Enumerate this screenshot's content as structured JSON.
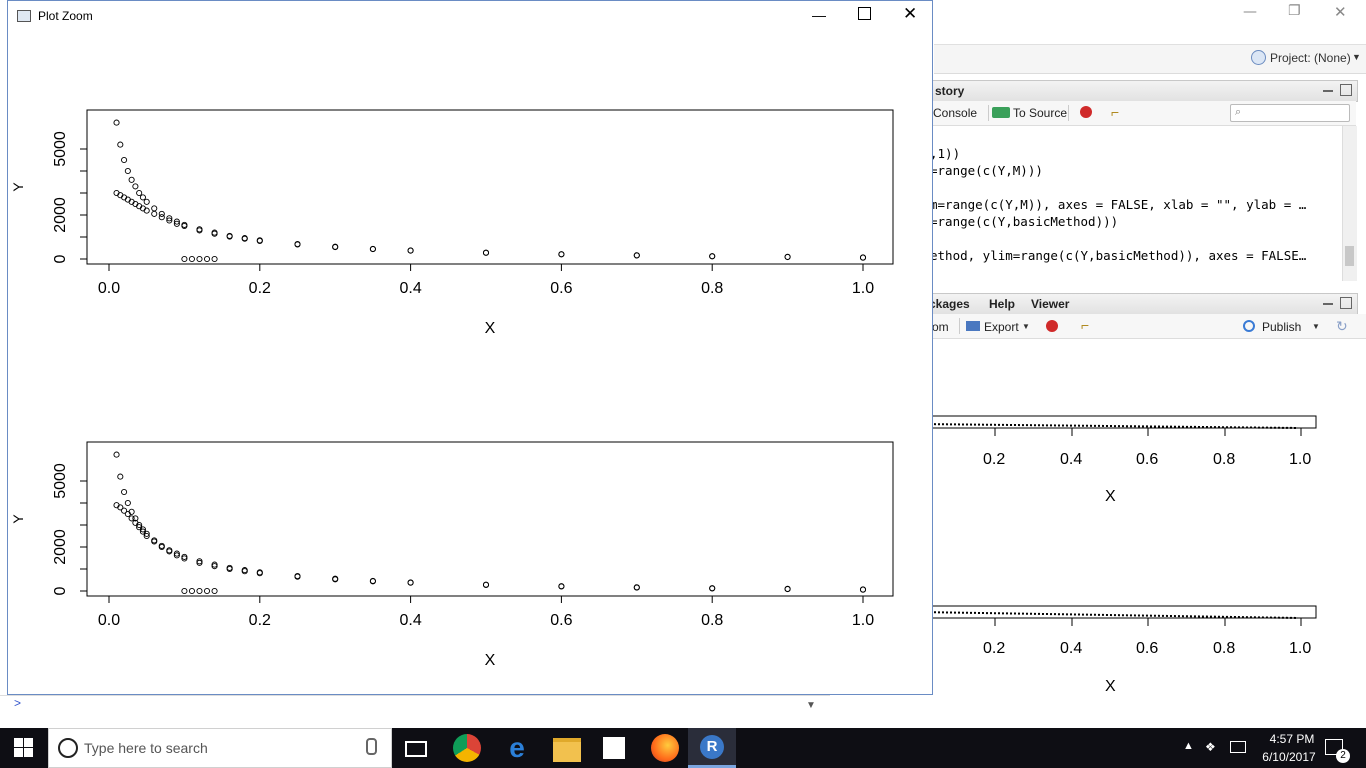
{
  "window": {
    "title": "Plot Zoom",
    "minimize_glyph": "—",
    "close_glyph": "✕"
  },
  "rstudio": {
    "minimize_glyph": "—",
    "restore_glyph": "❐",
    "close_glyph": "✕",
    "project_label": "Project: (None)",
    "history_tab": "story",
    "history_toolbar": {
      "console_label": "Console",
      "to_source_label": "To Source"
    },
    "history_lines": [
      ",1))",
      "=range(c(Y,M)))",
      "",
      "m=range(c(Y,M)), axes = FALSE, xlab = \"\", ylab = …",
      "=range(c(Y,basicMethod)))",
      "",
      "ethod, ylim=range(c(Y,basicMethod)), axes = FALSE…"
    ],
    "viewer_tabs": [
      "ckages",
      "Help",
      "Viewer"
    ],
    "viewer_toolbar": {
      "zoom_label": "om",
      "export_label": "Export",
      "publish_label": "Publish"
    },
    "bg_tick_labels": [
      "0.2",
      "0.4",
      "0.6",
      "0.8",
      "1.0"
    ],
    "bg_xlabel": "X"
  },
  "console": {
    "prompt": ">"
  },
  "taskbar": {
    "search_placeholder": "Type here to search",
    "time": "4:57 PM",
    "date": "6/10/2017",
    "notification_count": "2",
    "icons": [
      "windows-start-icon",
      "microphone-icon",
      "task-view-icon",
      "chrome-icon",
      "edge-icon",
      "file-explorer-icon",
      "store-icon",
      "firefox-icon",
      "r-icon"
    ]
  },
  "chart_data": [
    {
      "type": "scatter",
      "xlabel": "X",
      "ylabel": "Y",
      "xlim": [
        0.0,
        1.0
      ],
      "ylim": [
        0,
        6500
      ],
      "xticks": [
        "0.0",
        "0.2",
        "0.4",
        "0.6",
        "0.8",
        "1.0"
      ],
      "yticks": [
        "0",
        "2000",
        "5000"
      ],
      "ytick_values": [
        0,
        2000,
        5000
      ],
      "series": [
        {
          "x": [
            0.01,
            0.015,
            0.02,
            0.025,
            0.03,
            0.035,
            0.04,
            0.045,
            0.05,
            0.06,
            0.07,
            0.08,
            0.09,
            0.1,
            0.12,
            0.14,
            0.16,
            0.18,
            0.2,
            0.25,
            0.3,
            0.35,
            0.4,
            0.5,
            0.6,
            0.7,
            0.8,
            0.9,
            1.0
          ],
          "y": [
            6200,
            5200,
            4500,
            4000,
            3600,
            3300,
            3000,
            2800,
            2600,
            2300,
            2050,
            1850,
            1700,
            1550,
            1350,
            1200,
            1050,
            950,
            850,
            680,
            560,
            460,
            390,
            290,
            220,
            170,
            130,
            100,
            70
          ]
        },
        {
          "x": [
            0.01,
            0.015,
            0.02,
            0.025,
            0.03,
            0.035,
            0.04,
            0.045,
            0.05,
            0.06,
            0.07,
            0.08,
            0.09,
            0.1,
            0.12,
            0.14,
            0.16,
            0.18,
            0.2,
            0.25,
            0.3,
            0.35,
            0.4,
            0.5,
            0.6,
            0.7,
            0.8,
            0.9,
            1.0
          ],
          "y": [
            3000,
            2900,
            2800,
            2700,
            2600,
            2500,
            2400,
            2300,
            2200,
            2050,
            1900,
            1750,
            1600,
            1500,
            1300,
            1150,
            1020,
            920,
            820,
            660,
            540,
            450,
            380,
            280,
            210,
            160,
            120,
            90,
            60
          ]
        },
        {
          "x": [
            0.1,
            0.11,
            0.12,
            0.13,
            0.14
          ],
          "y": [
            0,
            0,
            0,
            0,
            0
          ]
        }
      ]
    },
    {
      "type": "scatter",
      "xlabel": "X",
      "ylabel": "Y",
      "xlim": [
        0.0,
        1.0
      ],
      "ylim": [
        0,
        6500
      ],
      "xticks": [
        "0.0",
        "0.2",
        "0.4",
        "0.6",
        "0.8",
        "1.0"
      ],
      "yticks": [
        "0",
        "2000",
        "5000"
      ],
      "ytick_values": [
        0,
        2000,
        5000
      ],
      "series": [
        {
          "x": [
            0.01,
            0.015,
            0.02,
            0.025,
            0.03,
            0.035,
            0.04,
            0.045,
            0.05,
            0.06,
            0.07,
            0.08,
            0.09,
            0.1,
            0.12,
            0.14,
            0.16,
            0.18,
            0.2,
            0.25,
            0.3,
            0.35,
            0.4,
            0.5,
            0.6,
            0.7,
            0.8,
            0.9,
            1.0
          ],
          "y": [
            6200,
            5200,
            4500,
            4000,
            3600,
            3300,
            3000,
            2800,
            2600,
            2300,
            2050,
            1850,
            1700,
            1550,
            1350,
            1200,
            1050,
            950,
            850,
            680,
            560,
            460,
            390,
            290,
            220,
            170,
            130,
            100,
            70
          ]
        },
        {
          "x": [
            0.01,
            0.015,
            0.02,
            0.025,
            0.03,
            0.035,
            0.04,
            0.045,
            0.05,
            0.06,
            0.07,
            0.08,
            0.09,
            0.1,
            0.12,
            0.14,
            0.16,
            0.18,
            0.2,
            0.25,
            0.3,
            0.35,
            0.4,
            0.5,
            0.6,
            0.7,
            0.8,
            0.9,
            1.0
          ],
          "y": [
            3900,
            3800,
            3650,
            3500,
            3300,
            3100,
            2900,
            2700,
            2500,
            2250,
            2000,
            1800,
            1620,
            1480,
            1280,
            1130,
            1000,
            900,
            810,
            650,
            530,
            440,
            375,
            275,
            205,
            155,
            115,
            85,
            60
          ]
        },
        {
          "x": [
            0.1,
            0.11,
            0.12,
            0.13,
            0.14
          ],
          "y": [
            0,
            0,
            0,
            0,
            0
          ]
        }
      ]
    }
  ]
}
